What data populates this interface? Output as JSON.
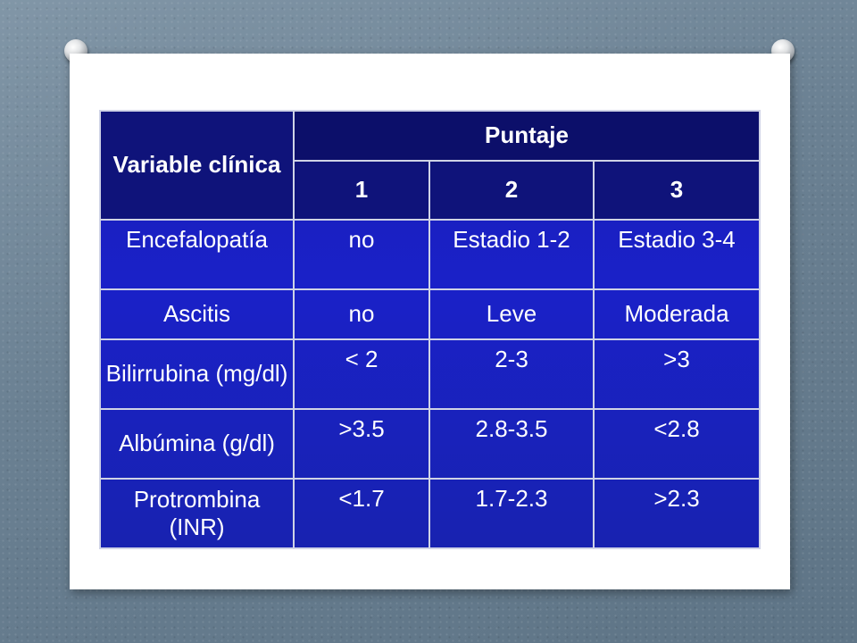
{
  "table": {
    "header": {
      "variable_label": "Variable clínica",
      "score_label": "Puntaje",
      "score_columns": [
        "1",
        "2",
        "3"
      ]
    },
    "rows": [
      {
        "variable": "Encefalopatía",
        "values": [
          "no",
          "Estadio 1-2",
          "Estadio 3-4"
        ]
      },
      {
        "variable": "Ascitis",
        "values": [
          "no",
          "Leve",
          "Moderada"
        ]
      },
      {
        "variable": "Bilirrubina (mg/dl)",
        "values": [
          "< 2",
          "2-3",
          ">3"
        ]
      },
      {
        "variable": "Albúmina (g/dl)",
        "values": [
          ">3.5",
          "2.8-3.5",
          "<2.8"
        ]
      },
      {
        "variable": "Protrombina (INR)",
        "values": [
          "<1.7",
          "1.7-2.3",
          ">2.3"
        ]
      }
    ]
  },
  "colors": {
    "table_blue": "#1a21c8",
    "header_navy": "#0f137a",
    "border": "#cfd3e6",
    "background": "#6f8597"
  }
}
